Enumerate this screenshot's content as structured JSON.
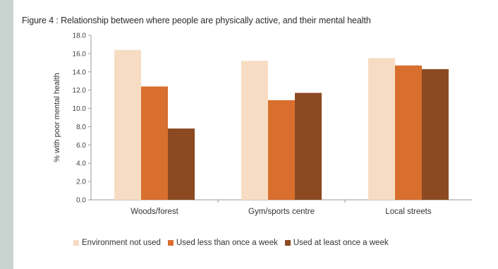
{
  "chart_data": {
    "type": "bar",
    "title": "Figure 4 : Relationship between where people are physically active, and their mental health",
    "ylabel": "% with poor mental health",
    "xlabel": "",
    "ylim": [
      0,
      18
    ],
    "yticks": [
      "0.0",
      "2.0",
      "4.0",
      "6.0",
      "8.0",
      "10.0",
      "12.0",
      "14.0",
      "16.0",
      "18.0"
    ],
    "categories": [
      "Woods/forest",
      "Gym/sports centre",
      "Local streets"
    ],
    "series": [
      {
        "name": "Environment not used",
        "color": "#f6dcc2",
        "values": [
          16.4,
          15.2,
          15.5
        ]
      },
      {
        "name": "Used less than once a week",
        "color": "#d86f2e",
        "values": [
          12.4,
          10.9,
          14.7
        ]
      },
      {
        "name": "Used at least once a week",
        "color": "#8b4a22",
        "values": [
          7.8,
          11.7,
          14.3
        ]
      }
    ],
    "grid": false,
    "legend_position": "bottom"
  }
}
